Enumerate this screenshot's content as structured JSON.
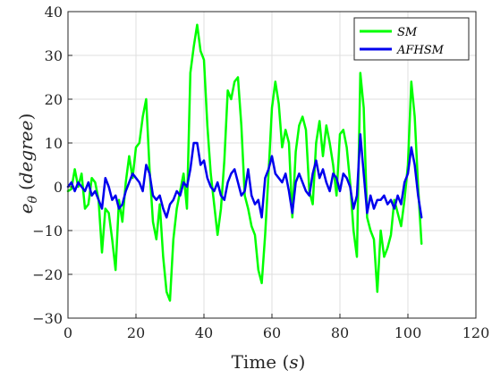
{
  "chart_data": {
    "type": "line",
    "xlabel_text": "Time ",
    "xlabel_var": "s",
    "ylabel_base": "e",
    "ylabel_sub": "θ",
    "ylabel_rest": "degree",
    "xlim": [
      0,
      120
    ],
    "ylim": [
      -30,
      40
    ],
    "xticks": [
      0,
      20,
      40,
      60,
      80,
      100,
      120
    ],
    "yticks": [
      -30,
      -20,
      -10,
      0,
      10,
      20,
      30,
      40
    ],
    "grid": true,
    "legend_position": "top-right",
    "series": [
      {
        "name": "SM",
        "color": "#00ff00",
        "x": [
          0,
          1,
          2,
          3,
          4,
          5,
          6,
          7,
          8,
          9,
          10,
          11,
          12,
          13,
          14,
          15,
          16,
          17,
          18,
          19,
          20,
          21,
          22,
          23,
          24,
          25,
          26,
          27,
          28,
          29,
          30,
          31,
          32,
          33,
          34,
          35,
          36,
          37,
          38,
          39,
          40,
          41,
          42,
          43,
          44,
          45,
          46,
          47,
          48,
          49,
          50,
          51,
          52,
          53,
          54,
          55,
          56,
          57,
          58,
          59,
          60,
          61,
          62,
          63,
          64,
          65,
          66,
          67,
          68,
          69,
          70,
          71,
          72,
          73,
          74,
          75,
          76,
          77,
          78,
          79,
          80,
          81,
          82,
          83,
          84,
          85,
          86,
          87,
          88,
          89,
          90,
          91,
          92,
          93,
          94,
          95,
          96,
          97,
          98,
          99,
          100,
          101,
          102,
          103,
          104
        ],
        "y": [
          -1,
          -0.5,
          4,
          0,
          3,
          -5,
          -4,
          2,
          1,
          -3,
          -15,
          -5,
          -6,
          -12,
          -19,
          -3,
          -8,
          1,
          7,
          2,
          9,
          10,
          16,
          20,
          4,
          -8,
          -12,
          -4,
          -16,
          -24,
          -26,
          -12,
          -5,
          -1,
          3,
          -5,
          26,
          32,
          37,
          31,
          29,
          14,
          3,
          -4,
          -11,
          -5,
          6,
          22,
          20,
          24,
          25,
          14,
          -2,
          -5,
          -9,
          -11,
          -19,
          -22,
          -11,
          3,
          18,
          24,
          19,
          9,
          13,
          10,
          -7,
          8,
          14,
          16,
          13,
          -1,
          -4,
          10,
          15,
          7,
          14,
          10,
          5,
          -2,
          12,
          13,
          9,
          1,
          -10,
          -16,
          26,
          18,
          -7,
          -10,
          -12,
          -24,
          -10,
          -16,
          -14,
          -11,
          -3,
          -6,
          -9,
          -3,
          5,
          24,
          16,
          0,
          -13
        ]
      },
      {
        "name": "AFHSM",
        "color": "#0000ee",
        "x": [
          0,
          1,
          2,
          3,
          4,
          5,
          6,
          7,
          8,
          9,
          10,
          11,
          12,
          13,
          14,
          15,
          16,
          17,
          18,
          19,
          20,
          21,
          22,
          23,
          24,
          25,
          26,
          27,
          28,
          29,
          30,
          31,
          32,
          33,
          34,
          35,
          36,
          37,
          38,
          39,
          40,
          41,
          42,
          43,
          44,
          45,
          46,
          47,
          48,
          49,
          50,
          51,
          52,
          53,
          54,
          55,
          56,
          57,
          58,
          59,
          60,
          61,
          62,
          63,
          64,
          65,
          66,
          67,
          68,
          69,
          70,
          71,
          72,
          73,
          74,
          75,
          76,
          77,
          78,
          79,
          80,
          81,
          82,
          83,
          84,
          85,
          86,
          87,
          88,
          89,
          90,
          91,
          92,
          93,
          94,
          95,
          96,
          97,
          98,
          99,
          100,
          101,
          102,
          103,
          104
        ],
        "y": [
          0,
          1,
          -1,
          1,
          0,
          -1,
          1,
          -2,
          -1,
          -3,
          -5,
          2,
          0,
          -3,
          -2,
          -5,
          -4,
          -1,
          1,
          3,
          2,
          1,
          -1,
          5,
          3,
          -2,
          -3,
          -2,
          -5,
          -7,
          -4,
          -3,
          -1,
          -2,
          1,
          0,
          4,
          10,
          10,
          5,
          6,
          2,
          0,
          -1,
          1,
          -2,
          -3,
          1,
          3,
          4,
          1,
          -2,
          -1,
          4,
          -2,
          -4,
          -3,
          -7,
          2,
          4,
          7,
          3,
          2,
          1,
          3,
          -1,
          -6,
          1,
          3,
          1,
          -1,
          -2,
          3,
          6,
          2,
          4,
          1,
          -1,
          3,
          2,
          -1,
          3,
          2,
          0,
          -5,
          -2,
          12,
          3,
          -6,
          -2,
          -5,
          -3,
          -3,
          -2,
          -4,
          -3,
          -5,
          -2,
          -4,
          1,
          3,
          9,
          5,
          -2,
          -7
        ]
      }
    ]
  }
}
